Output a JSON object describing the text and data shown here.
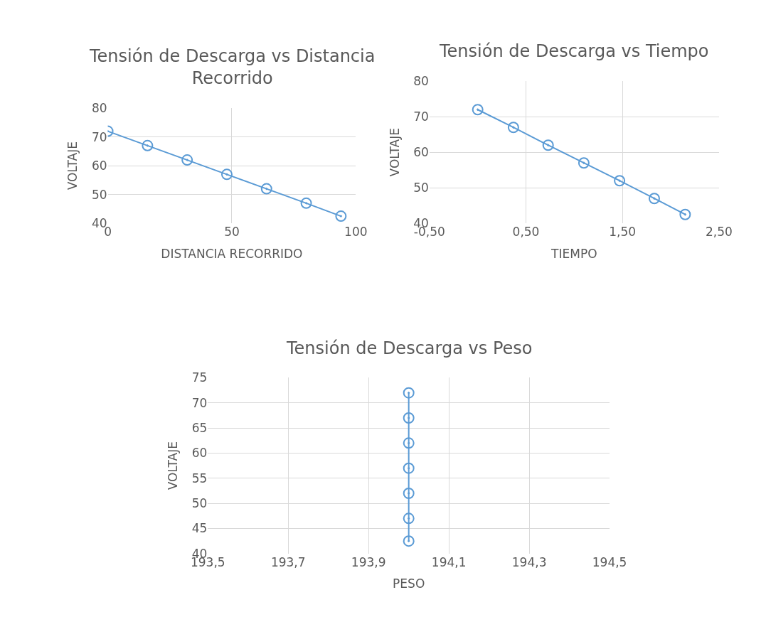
{
  "chart_data": [
    {
      "type": "line",
      "title": "Tensión de Descarga vs Distancia Recorrido",
      "xlabel": "DISTANCIA RECORRIDO",
      "ylabel": "VOLTAJE",
      "series": [
        {
          "color": "#5b9bd5",
          "x": [
            0,
            16,
            32,
            48,
            64,
            80,
            94
          ],
          "values": [
            72,
            67,
            62,
            57,
            52,
            47,
            42.5
          ]
        }
      ],
      "xlim": [
        0,
        100
      ],
      "xticks": [
        0,
        50,
        100
      ],
      "ylim": [
        40,
        80
      ],
      "yticks": [
        40,
        50,
        60,
        70,
        80
      ],
      "grid": true,
      "marker": "circle",
      "line_style": "solid"
    },
    {
      "type": "line",
      "title": "Tensión de Descarga vs Tiempo",
      "xlabel": "TIEMPO",
      "ylabel": "VOLTAJE",
      "series": [
        {
          "color": "#5b9bd5",
          "x": [
            0,
            0.37,
            0.73,
            1.1,
            1.47,
            1.83,
            2.15
          ],
          "values": [
            72,
            67,
            62,
            57,
            52,
            47,
            42.5
          ]
        }
      ],
      "xlim": [
        -0.5,
        2.5
      ],
      "xticks": [
        {
          "value": -0.5,
          "label": "-0,50"
        },
        {
          "value": 0.5,
          "label": "0,50"
        },
        {
          "value": 1.5,
          "label": "1,50"
        },
        {
          "value": 2.5,
          "label": "2,50"
        }
      ],
      "ylim": [
        40,
        80
      ],
      "yticks": [
        40,
        50,
        60,
        70,
        80
      ],
      "grid": true,
      "marker": "circle",
      "line_style": "solid"
    },
    {
      "type": "line",
      "title": "Tensión de Descarga vs Peso",
      "xlabel": "PESO",
      "ylabel": "VOLTAJE",
      "series": [
        {
          "color": "#5b9bd5",
          "x": [
            194,
            194,
            194,
            194,
            194,
            194,
            194
          ],
          "values": [
            72,
            67,
            62,
            57,
            52,
            47,
            42.5
          ]
        }
      ],
      "xlim": [
        193.5,
        194.5
      ],
      "xticks": [
        {
          "value": 193.5,
          "label": "193,5"
        },
        {
          "value": 193.7,
          "label": "193,7"
        },
        {
          "value": 193.9,
          "label": "193,9"
        },
        {
          "value": 194.1,
          "label": "194,1"
        },
        {
          "value": 194.3,
          "label": "194,3"
        },
        {
          "value": 194.5,
          "label": "194,5"
        }
      ],
      "ylim": [
        40,
        75
      ],
      "yticks": [
        40,
        45,
        50,
        55,
        60,
        65,
        70,
        75
      ],
      "grid": true,
      "marker": "circle",
      "line_style": "solid"
    }
  ]
}
